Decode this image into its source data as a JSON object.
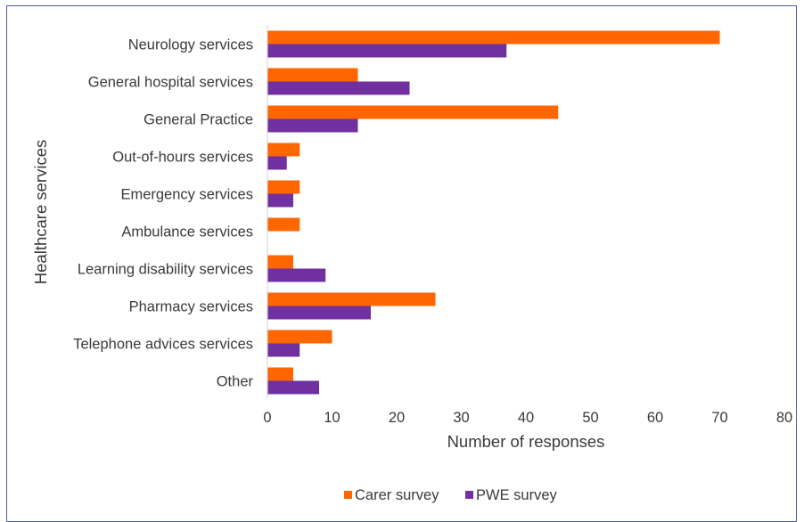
{
  "chart_data": {
    "type": "bar",
    "orientation": "horizontal",
    "categories": [
      "Neurology services",
      "General hospital services",
      "General Practice",
      "Out-of-hours services",
      "Emergency services",
      "Ambulance services",
      "Learning disability services",
      "Pharmacy services",
      "Telephone advices services",
      "Other"
    ],
    "series": [
      {
        "name": "Carer survey",
        "color": "#ff6600",
        "values": [
          70,
          14,
          45,
          5,
          5,
          5,
          4,
          26,
          10,
          4
        ]
      },
      {
        "name": "PWE survey",
        "color": "#7030a0",
        "values": [
          37,
          22,
          14,
          3,
          4,
          0,
          9,
          16,
          5,
          8
        ]
      }
    ],
    "xlabel": "Number of responses",
    "ylabel": "Healthcare services",
    "xlim": [
      0,
      80
    ],
    "xticks": [
      "0",
      "10",
      "20",
      "30",
      "40",
      "50",
      "60",
      "70",
      "80"
    ],
    "grid": false,
    "legend_position": "bottom"
  }
}
